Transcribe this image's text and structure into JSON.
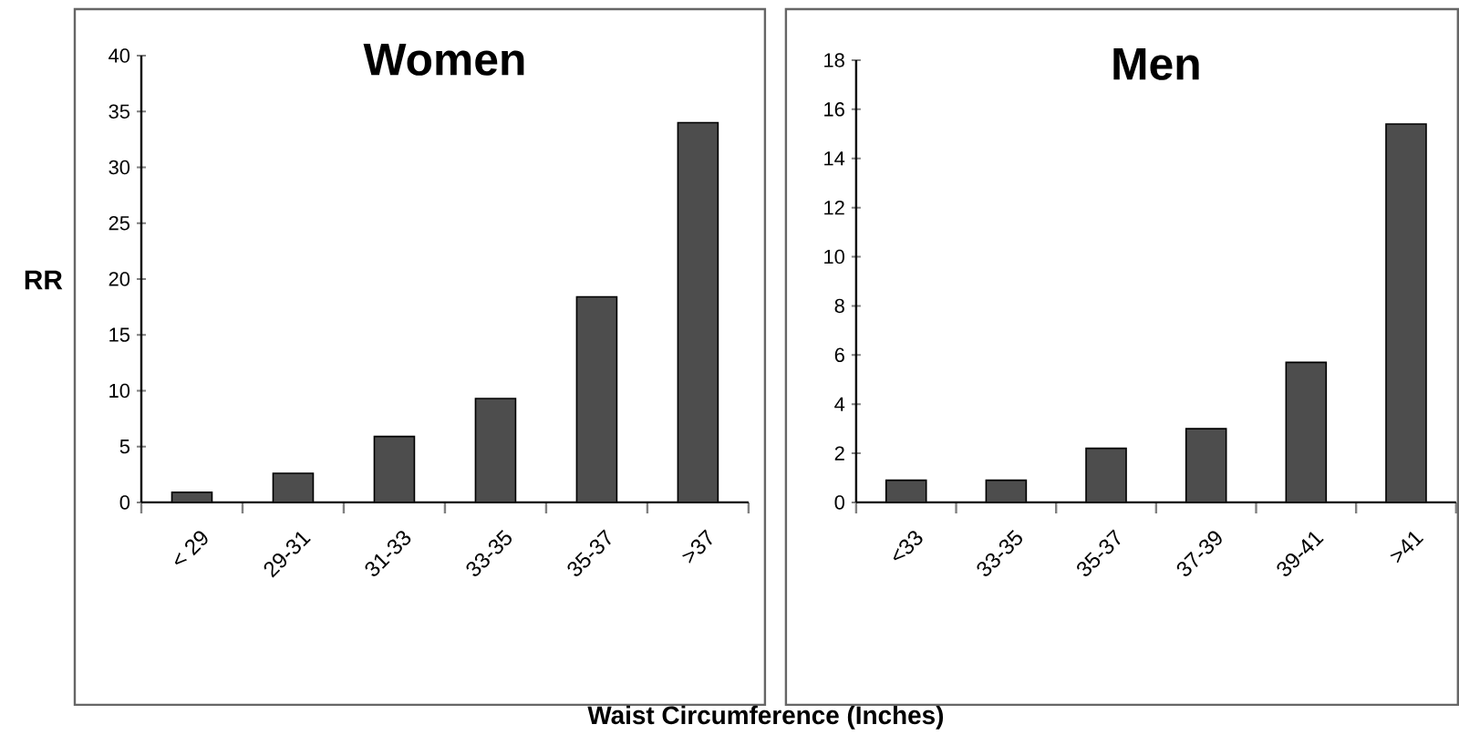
{
  "chart_data": [
    {
      "type": "bar",
      "title": "Women",
      "ylabel": "RR",
      "xlabel": "Waist Circumference (Inches)",
      "categories": [
        "< 29",
        "29-31",
        "31-33",
        "33-35",
        "35-37",
        ">37"
      ],
      "values": [
        0.9,
        2.6,
        5.9,
        9.3,
        18.4,
        34.0
      ],
      "color": "#4d4d4d",
      "ylim": [
        0,
        40
      ],
      "yticks": [
        0,
        5,
        10,
        15,
        20,
        25,
        30,
        35,
        40
      ]
    },
    {
      "type": "bar",
      "title": "Men",
      "categories": [
        "<33",
        "33-35",
        "35-37",
        "37-39",
        "39-41",
        ">41"
      ],
      "values": [
        0.9,
        0.9,
        2.2,
        3.0,
        5.7,
        15.4
      ],
      "color": "#4d4d4d",
      "ylim": [
        0,
        18
      ],
      "yticks": [
        0,
        2,
        4,
        6,
        8,
        10,
        12,
        14,
        16,
        18
      ]
    }
  ]
}
